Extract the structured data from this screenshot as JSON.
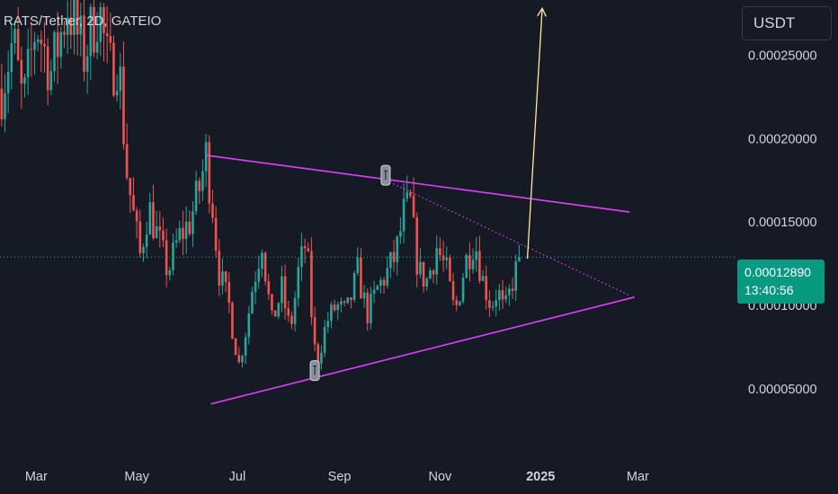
{
  "header": {
    "symbol_title": "RATS/Tether, 2D, GATEIO",
    "currency_label": "USDT"
  },
  "price_badge": {
    "last_price": "0.00012890",
    "countdown": "13:40:56"
  },
  "colors": {
    "background": "#161a25",
    "up_candle": "#26a69a",
    "down_candle": "#ef5350",
    "trendline": "#e040fb",
    "projection_arrow": "#ffe9a8",
    "axis_text": "#d1d4dc"
  },
  "chart_data": {
    "type": "candlestick",
    "title": "RATS/Tether, 2D, GATEIO",
    "y_axis": {
      "ticks": [
        "0.00025000",
        "0.00020000",
        "0.00015000",
        "0.00010000",
        "0.00005000"
      ],
      "tick_values": [
        0.00025,
        0.0002,
        0.00015,
        0.0001,
        5e-05
      ],
      "range": [
        7.5e-06,
        0.000283
      ]
    },
    "x_axis": {
      "ticks": [
        "Mar",
        "May",
        "Jul",
        "Sep",
        "Nov",
        "2025",
        "Mar"
      ],
      "tick_dates": [
        "2024-03-01",
        "2024-05-01",
        "2024-07-01",
        "2024-09-01",
        "2024-11-01",
        "2025-01-01",
        "2025-03-01"
      ],
      "range": [
        "2024-02-08",
        "2025-04-26"
      ]
    },
    "last_price": 0.0001289,
    "grid": false,
    "close_path": [
      [
        "2024-02-09",
        0.00023
      ],
      [
        "2024-02-16",
        0.00026
      ],
      [
        "2024-02-22",
        0.00022
      ],
      [
        "2024-03-01",
        0.00027
      ],
      [
        "2024-03-10",
        0.00024
      ],
      [
        "2024-03-20",
        0.00028
      ],
      [
        "2024-03-30",
        0.00025
      ],
      [
        "2024-04-08",
        0.00028
      ],
      [
        "2024-04-14",
        0.00024
      ],
      [
        "2024-04-20",
        0.00025
      ],
      [
        "2024-04-25",
        0.00018
      ],
      [
        "2024-04-28",
        0.00016
      ],
      [
        "2024-05-03",
        0.00013
      ],
      [
        "2024-05-08",
        0.00016
      ],
      [
        "2024-05-14",
        0.00014
      ],
      [
        "2024-05-20",
        0.00012
      ],
      [
        "2024-05-26",
        0.00014
      ],
      [
        "2024-06-02",
        0.00015
      ],
      [
        "2024-06-08",
        0.00017
      ],
      [
        "2024-06-12",
        0.00019
      ],
      [
        "2024-06-16",
        0.00016
      ],
      [
        "2024-06-20",
        0.00012
      ],
      [
        "2024-06-26",
        0.0001
      ],
      [
        "2024-07-02",
        6.5e-05
      ],
      [
        "2024-07-10",
        0.00011
      ],
      [
        "2024-07-16",
        0.00014
      ],
      [
        "2024-07-22",
        9e-05
      ],
      [
        "2024-07-28",
        0.00011
      ],
      [
        "2024-08-02",
        8.5e-05
      ],
      [
        "2024-08-07",
        0.00012
      ],
      [
        "2024-08-12",
        0.00014
      ],
      [
        "2024-08-18",
        6.5e-05
      ],
      [
        "2024-08-24",
        9e-05
      ],
      [
        "2024-08-30",
        0.0001
      ],
      [
        "2024-09-05",
        9.5e-05
      ],
      [
        "2024-09-12",
        0.00012
      ],
      [
        "2024-09-18",
        9.5e-05
      ],
      [
        "2024-09-24",
        0.00011
      ],
      [
        "2024-09-30",
        0.00012
      ],
      [
        "2024-10-05",
        0.00013
      ],
      [
        "2024-10-10",
        0.000155
      ],
      [
        "2024-10-14",
        0.00016
      ],
      [
        "2024-10-19",
        0.00012
      ],
      [
        "2024-10-24",
        0.000115
      ],
      [
        "2024-10-30",
        0.000135
      ],
      [
        "2024-11-05",
        0.00012
      ],
      [
        "2024-11-10",
        9.5e-05
      ],
      [
        "2024-11-16",
        0.000125
      ],
      [
        "2024-11-22",
        0.00014
      ],
      [
        "2024-11-27",
        0.000115
      ],
      [
        "2024-12-02",
        0.0001
      ],
      [
        "2024-12-06",
        0.00011
      ],
      [
        "2024-12-10",
        9.5e-05
      ],
      [
        "2024-12-15",
        0.000115
      ],
      [
        "2024-12-20",
        0.0001289
      ]
    ],
    "drawings": [
      {
        "name": "upper-trendline",
        "style": "solid",
        "from": [
          "2024-06-12",
          0.00019
        ],
        "to": [
          "2025-02-24",
          0.000156
        ]
      },
      {
        "name": "lower-trendline",
        "style": "solid",
        "from": [
          "2024-06-15",
          4.1e-05
        ],
        "to": [
          "2025-02-27",
          0.000105
        ]
      },
      {
        "name": "dotted-trendline",
        "style": "dotted",
        "from": [
          "2024-09-29",
          0.000175
        ],
        "to": [
          "2025-02-24",
          0.000106
        ]
      },
      {
        "name": "projection-arrow",
        "style": "arrow",
        "from": [
          "2024-12-24",
          0.000128
        ],
        "to": [
          "2025-01-02",
          0.000278
        ]
      }
    ],
    "markers": [
      {
        "name": "marker-high",
        "date": "2024-09-29",
        "value": 0.000178
      },
      {
        "name": "marker-low",
        "date": "2024-08-17",
        "value": 6.1e-05
      }
    ]
  }
}
